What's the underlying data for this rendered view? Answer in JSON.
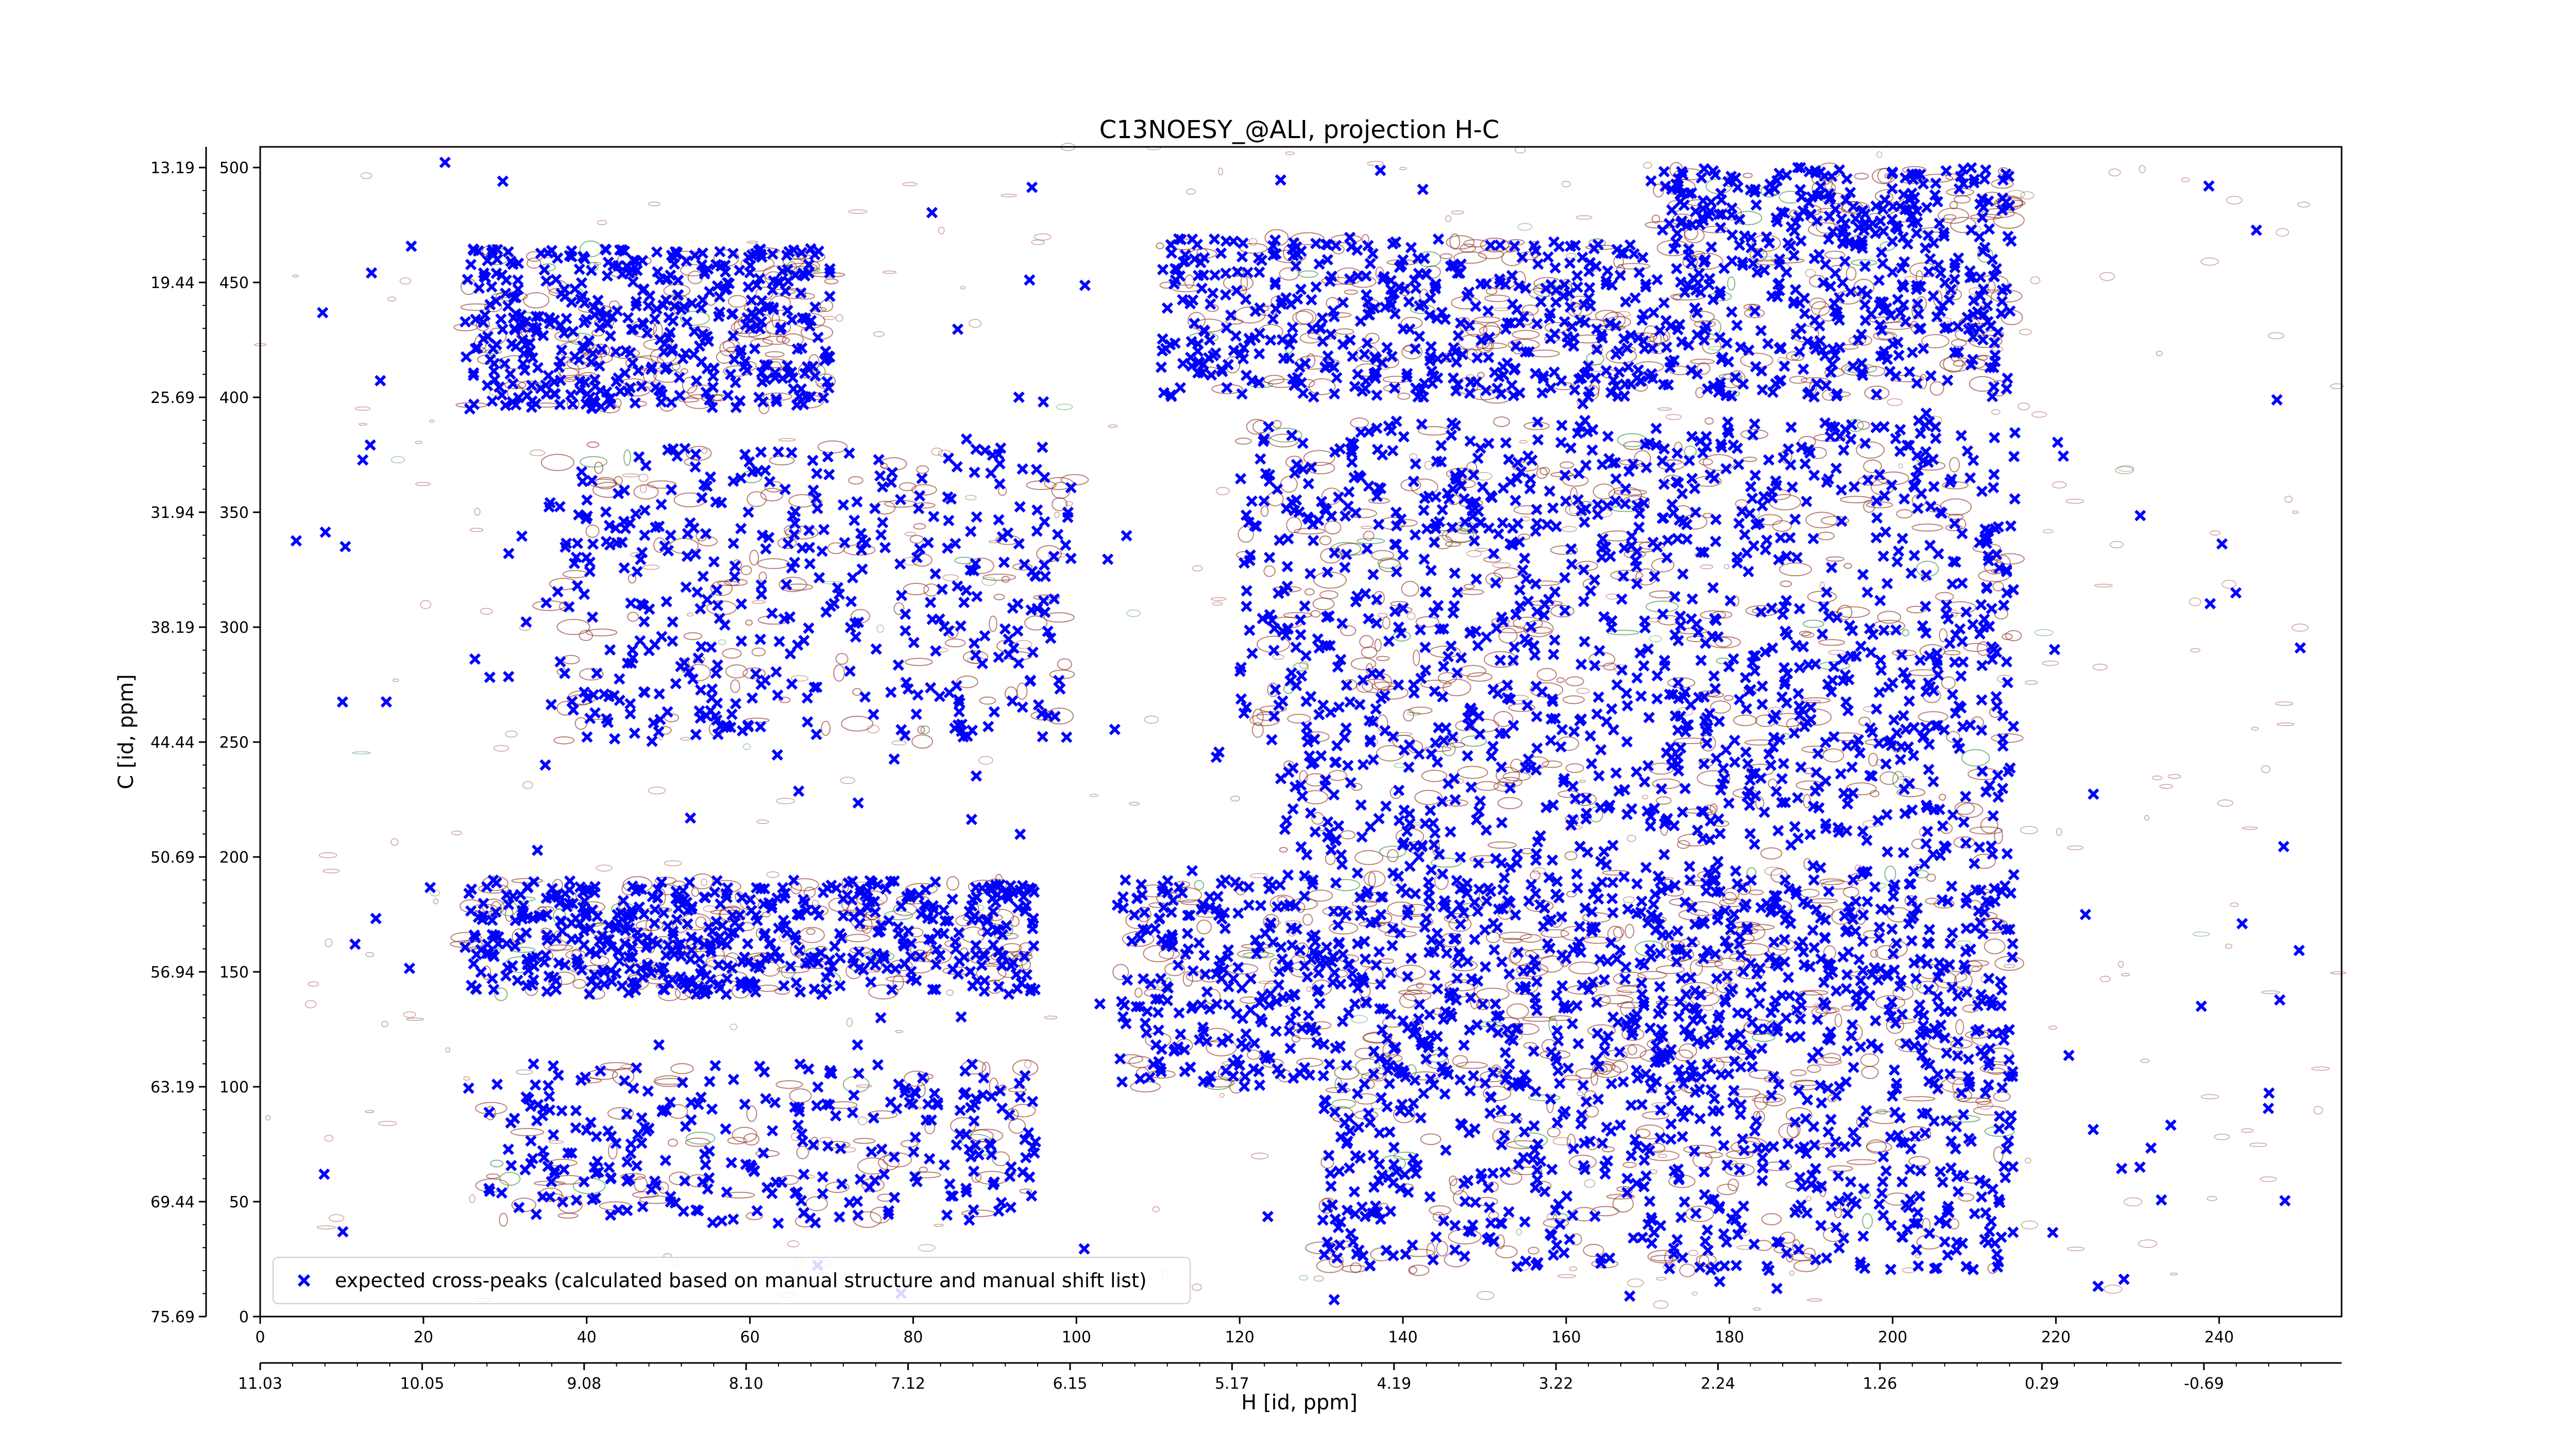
{
  "chart_data": {
    "type": "scatter",
    "title": "C13NOESY_@ALI, projection H-C",
    "xlabel": "H [id, ppm]",
    "ylabel": "C [id, ppm]",
    "xlim": [
      0,
      255
    ],
    "ylim": [
      0,
      509
    ],
    "x_ticks": [
      0,
      20,
      40,
      60,
      80,
      100,
      120,
      140,
      160,
      180,
      200,
      220,
      240
    ],
    "y_ticks": [
      0,
      50,
      100,
      150,
      200,
      250,
      300,
      350,
      400,
      450,
      500
    ],
    "x_ppm_ticks": [
      "11.03",
      "10.05",
      "9.08",
      "8.10",
      "7.12",
      "6.15",
      "5.17",
      "4.19",
      "3.22",
      "2.24",
      "1.26",
      "0.29",
      "-0.69"
    ],
    "y_ppm_ticks": [
      "75.69",
      "69.44",
      "63.19",
      "56.94",
      "50.69",
      "44.44",
      "38.19",
      "31.94",
      "25.69",
      "19.44",
      "13.19"
    ],
    "legend": {
      "placement": "lower-left"
    },
    "colors": {
      "points": "#0000ff",
      "contour_positive": "#8b2e1e",
      "contour_negative": "#2e8b3a"
    },
    "series": [
      {
        "name": "expected cross-peaks (calculated based on manual structure and manual shift list)",
        "marker": "x",
        "clusters": [
          {
            "x": [
              25,
              95
            ],
            "y": [
              140,
              190
            ],
            "n": 520
          },
          {
            "x": [
              25,
              70
            ],
            "y": [
              395,
              465
            ],
            "n": 420
          },
          {
            "x": [
              35,
              100
            ],
            "y": [
              250,
              380
            ],
            "n": 380
          },
          {
            "x": [
              105,
              215
            ],
            "y": [
              100,
              190
            ],
            "n": 900
          },
          {
            "x": [
              110,
              215
            ],
            "y": [
              400,
              470
            ],
            "n": 700
          },
          {
            "x": [
              120,
              215
            ],
            "y": [
              250,
              390
            ],
            "n": 800
          },
          {
            "x": [
              130,
              215
            ],
            "y": [
              20,
              100
            ],
            "n": 420
          },
          {
            "x": [
              170,
              215
            ],
            "y": [
              470,
              500
            ],
            "n": 180
          },
          {
            "x": [
              28,
              95
            ],
            "y": [
              40,
              110
            ],
            "n": 260
          },
          {
            "x": [
              125,
              215
            ],
            "y": [
              190,
              250
            ],
            "n": 300
          }
        ]
      }
    ]
  }
}
